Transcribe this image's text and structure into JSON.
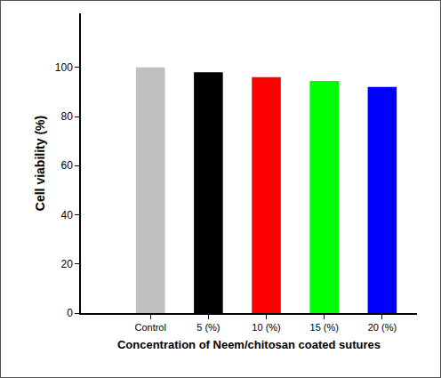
{
  "chart_data": {
    "type": "bar",
    "categories": [
      "Control",
      "5 (%)",
      "10 (%)",
      "15 (%)",
      "20 (%)"
    ],
    "values": [
      100,
      98,
      96,
      94.5,
      92
    ],
    "colors": [
      "#c0c0c0",
      "#000000",
      "#ff0000",
      "#00ff00",
      "#0000ff"
    ],
    "x_label": "Concentration of Neem/chitosan coated sutures",
    "y_label": "Cell viability (%)",
    "ylim": [
      0,
      122
    ],
    "yticks": [
      0,
      20,
      40,
      60,
      80,
      100
    ],
    "grid": false
  }
}
